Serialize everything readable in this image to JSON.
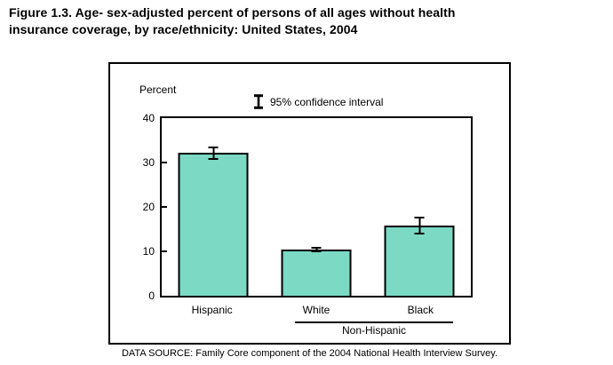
{
  "figure": {
    "title_lines": [
      "Figure 1.3. Age- sex-adjusted percent of persons of all ages without health",
      "insurance coverage, by race/ethnicity: United States, 2004"
    ]
  },
  "chart_data": {
    "type": "bar",
    "title": "Figure 1.3. Age- sex-adjusted percent of persons of all ages without health insurance coverage, by race/ethnicity: United States, 2004",
    "ylabel": "Percent",
    "xlabel": "",
    "categories": [
      "Hispanic",
      "White",
      "Black"
    ],
    "values": [
      32.2,
      10.4,
      15.9
    ],
    "error_95ci": [
      1.5,
      0.6,
      2.0
    ],
    "group": {
      "label": "Non-Hispanic",
      "members": [
        "White",
        "Black"
      ]
    },
    "yticks": [
      40,
      30,
      20,
      10,
      0
    ],
    "ylim": [
      0,
      40
    ],
    "grid": false,
    "legend_label": "95% confidence interval",
    "legend_position": "top-center",
    "bar_color": "#7bd9c4",
    "bar_border_color": "#000000",
    "source_note": "DATA SOURCE: Family Core component of the 2004 National Health Interview Survey."
  }
}
